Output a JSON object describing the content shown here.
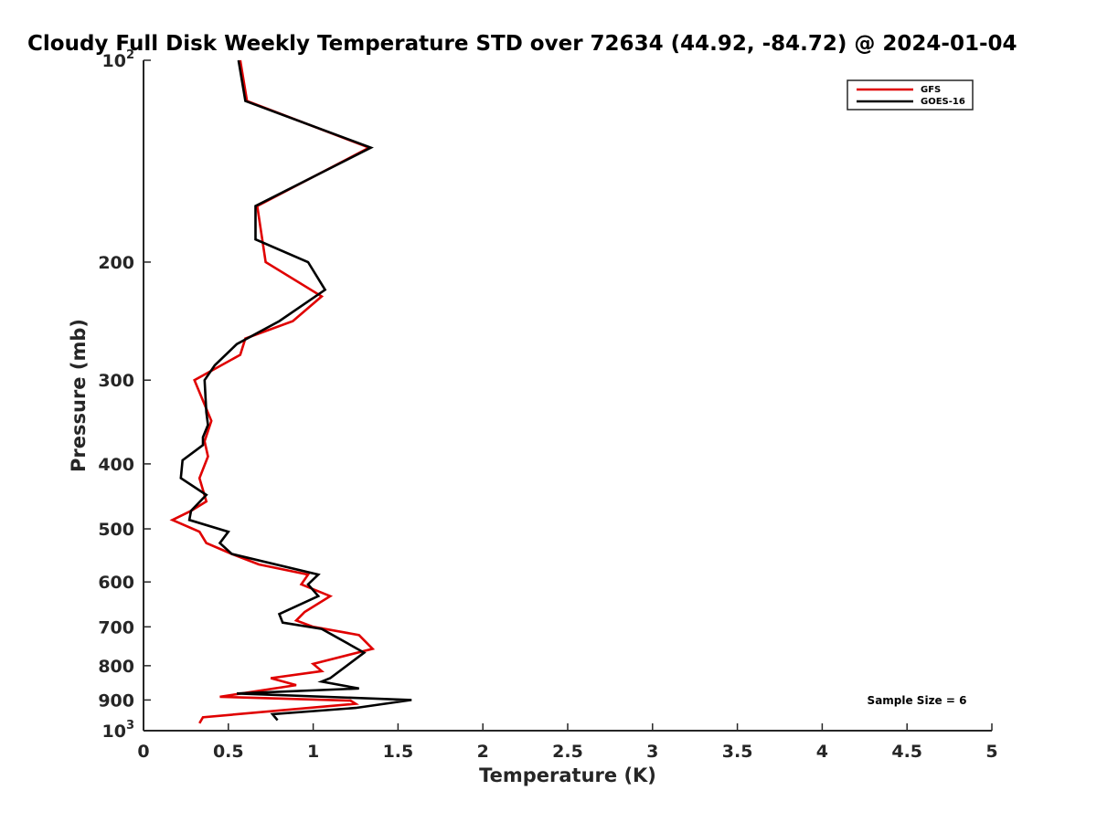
{
  "chart_data": {
    "type": "line",
    "title": "Cloudy Full Disk Weekly Temperature STD over 72634 (44.92, -84.72) @ 2024-01-04",
    "xlabel": "Temperature (K)",
    "ylabel": "Pressure (mb)",
    "xlim": [
      0,
      5
    ],
    "ylim": [
      100,
      1000
    ],
    "y_scale": "log",
    "y_reversed": true,
    "x_ticks": [
      "0",
      "0.5",
      "1",
      "1.5",
      "2",
      "2.5",
      "3",
      "3.5",
      "4",
      "4.5",
      "5"
    ],
    "y_ticks": [
      {
        "value": 100,
        "base": "10",
        "exp": "2"
      },
      {
        "value": 200,
        "label": "200"
      },
      {
        "value": 300,
        "label": "300"
      },
      {
        "value": 400,
        "label": "400"
      },
      {
        "value": 500,
        "label": "500"
      },
      {
        "value": 600,
        "label": "600"
      },
      {
        "value": 700,
        "label": "700"
      },
      {
        "value": 800,
        "label": "800"
      },
      {
        "value": 900,
        "label": "900"
      },
      {
        "value": 1000,
        "base": "10",
        "exp": "3"
      }
    ],
    "grid": false,
    "legend_position": "top-right",
    "annotation": "Sample Size = 6",
    "series": [
      {
        "name": "GFS",
        "color": "#e00000",
        "points": [
          [
            0.57,
            100
          ],
          [
            0.61,
            115
          ],
          [
            1.33,
            135
          ],
          [
            0.67,
            165
          ],
          [
            0.72,
            200
          ],
          [
            1.05,
            225
          ],
          [
            0.88,
            245
          ],
          [
            0.6,
            260
          ],
          [
            0.57,
            275
          ],
          [
            0.3,
            300
          ],
          [
            0.4,
            345
          ],
          [
            0.36,
            370
          ],
          [
            0.38,
            390
          ],
          [
            0.33,
            420
          ],
          [
            0.37,
            455
          ],
          [
            0.28,
            470
          ],
          [
            0.17,
            485
          ],
          [
            0.33,
            505
          ],
          [
            0.37,
            525
          ],
          [
            0.52,
            545
          ],
          [
            0.68,
            565
          ],
          [
            0.97,
            585
          ],
          [
            0.93,
            605
          ],
          [
            1.1,
            630
          ],
          [
            0.95,
            665
          ],
          [
            0.9,
            685
          ],
          [
            1.0,
            700
          ],
          [
            1.27,
            720
          ],
          [
            1.35,
            755
          ],
          [
            1.0,
            795
          ],
          [
            1.05,
            815
          ],
          [
            0.75,
            835
          ],
          [
            0.9,
            855
          ],
          [
            0.45,
            890
          ],
          [
            1.22,
            902
          ],
          [
            1.25,
            912
          ],
          [
            0.35,
            955
          ],
          [
            0.33,
            975
          ]
        ]
      },
      {
        "name": "GOES-16",
        "color": "#000000",
        "points": [
          [
            0.56,
            100
          ],
          [
            0.6,
            115
          ],
          [
            1.34,
            135
          ],
          [
            0.66,
            165
          ],
          [
            0.66,
            185
          ],
          [
            0.97,
            200
          ],
          [
            1.07,
            220
          ],
          [
            0.8,
            245
          ],
          [
            0.55,
            265
          ],
          [
            0.42,
            285
          ],
          [
            0.36,
            300
          ],
          [
            0.37,
            335
          ],
          [
            0.38,
            350
          ],
          [
            0.35,
            365
          ],
          [
            0.35,
            375
          ],
          [
            0.23,
            395
          ],
          [
            0.22,
            420
          ],
          [
            0.37,
            445
          ],
          [
            0.28,
            470
          ],
          [
            0.27,
            485
          ],
          [
            0.5,
            505
          ],
          [
            0.45,
            525
          ],
          [
            0.52,
            545
          ],
          [
            1.03,
            585
          ],
          [
            0.97,
            605
          ],
          [
            1.03,
            630
          ],
          [
            0.8,
            670
          ],
          [
            0.82,
            690
          ],
          [
            1.05,
            705
          ],
          [
            1.22,
            745
          ],
          [
            1.3,
            765
          ],
          [
            1.1,
            835
          ],
          [
            1.05,
            845
          ],
          [
            1.27,
            865
          ],
          [
            0.55,
            880
          ],
          [
            1.58,
            900
          ],
          [
            1.25,
            925
          ],
          [
            0.76,
            945
          ],
          [
            0.79,
            965
          ]
        ]
      }
    ]
  }
}
